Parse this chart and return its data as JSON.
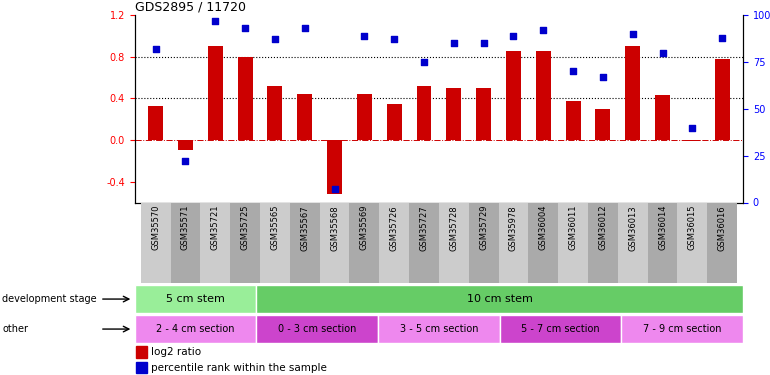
{
  "title": "GDS2895 / 11720",
  "categories": [
    "GSM35570",
    "GSM35571",
    "GSM35721",
    "GSM35725",
    "GSM35565",
    "GSM35567",
    "GSM35568",
    "GSM35569",
    "GSM35726",
    "GSM35727",
    "GSM35728",
    "GSM35729",
    "GSM35978",
    "GSM36004",
    "GSM36011",
    "GSM36012",
    "GSM36013",
    "GSM36014",
    "GSM36015",
    "GSM36016"
  ],
  "log2_ratio": [
    0.33,
    -0.1,
    0.9,
    0.8,
    0.52,
    0.44,
    -0.52,
    0.44,
    0.35,
    0.52,
    0.5,
    0.5,
    0.85,
    0.85,
    0.37,
    0.3,
    0.9,
    0.43,
    -0.01,
    0.78
  ],
  "percentile_rank": [
    82,
    22,
    97,
    93,
    87,
    93,
    7,
    89,
    87,
    75,
    85,
    85,
    89,
    92,
    70,
    67,
    90,
    80,
    40,
    88
  ],
  "bar_color": "#cc0000",
  "scatter_color": "#0000cc",
  "ylim_left": [
    -0.6,
    1.2
  ],
  "ylim_right": [
    0,
    100
  ],
  "yticks_left": [
    -0.4,
    0.0,
    0.4,
    0.8,
    1.2
  ],
  "yticks_right": [
    0,
    25,
    50,
    75,
    100
  ],
  "hlines": [
    0.4,
    0.8
  ],
  "development_stage_groups": [
    {
      "label": "5 cm stem",
      "start": 0,
      "end": 4,
      "color": "#99ee99"
    },
    {
      "label": "10 cm stem",
      "start": 4,
      "end": 20,
      "color": "#66cc66"
    }
  ],
  "other_groups": [
    {
      "label": "2 - 4 cm section",
      "start": 0,
      "end": 4,
      "color": "#ee88ee"
    },
    {
      "label": "0 - 3 cm section",
      "start": 4,
      "end": 8,
      "color": "#cc44cc"
    },
    {
      "label": "3 - 5 cm section",
      "start": 8,
      "end": 12,
      "color": "#ee88ee"
    },
    {
      "label": "5 - 7 cm section",
      "start": 12,
      "end": 16,
      "color": "#cc44cc"
    },
    {
      "label": "7 - 9 cm section",
      "start": 16,
      "end": 20,
      "color": "#ee88ee"
    }
  ],
  "dev_stage_label": "development stage",
  "other_label": "other",
  "legend_log2": "log2 ratio",
  "legend_pct": "percentile rank within the sample",
  "background_color": "#ffffff",
  "xtick_bg_colors": [
    "#cccccc",
    "#aaaaaa"
  ]
}
